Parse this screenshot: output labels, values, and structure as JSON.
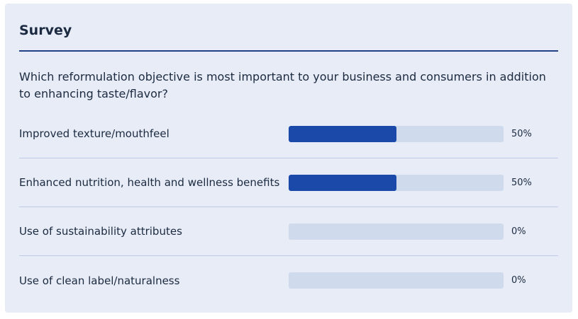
{
  "survey": {
    "title": "Survey",
    "question": "Which reformulation objective is most important to your business and consumers in addition to enhancing taste/flavor?",
    "options": [
      {
        "label": "Improved texture/mouthfeel",
        "percent_text": "50%",
        "value": 0.5
      },
      {
        "label": "Enhanced nutrition, health and wellness benefits",
        "percent_text": "50%",
        "value": 0.5
      },
      {
        "label": "Use of sustainability attributes",
        "percent_text": "0%",
        "value": 0.0
      },
      {
        "label": "Use of clean label/naturalness",
        "percent_text": "0%",
        "value": 0.0
      }
    ]
  },
  "colors": {
    "bar_fill": "#1b49a9",
    "bar_track": "#cfdaed",
    "accent_rule": "#1f3f86"
  }
}
